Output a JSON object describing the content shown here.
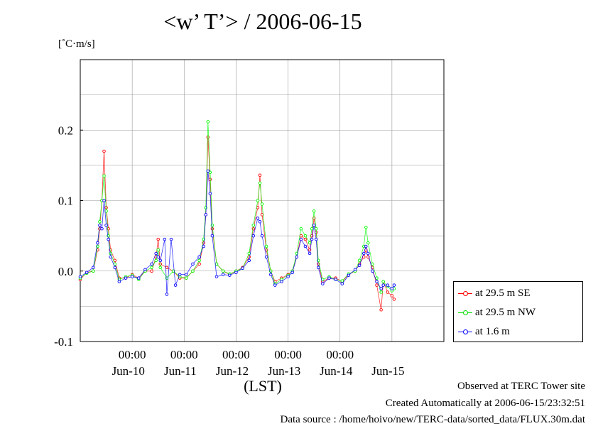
{
  "chart_data": {
    "type": "line",
    "title": "<w’ T’> / 2006-06-15",
    "units": "[˚C·m/s]",
    "xlabel": "(LST)",
    "x_start": "2006-06-09 00:00",
    "x_end": "2006-06-16 00:00",
    "x_time_ticks": [
      "00:00",
      "00:00",
      "00:00",
      "00:00",
      "00:00"
    ],
    "x_day_labels": [
      "Jun-10",
      "Jun-11",
      "Jun-12",
      "Jun-13",
      "Jun-14",
      "Jun-15"
    ],
    "y_ticks": [
      "-0.1",
      "0.0",
      "0.1",
      "0.2"
    ],
    "ylim": [
      -0.1,
      0.3
    ],
    "grid": true,
    "legend_position": "right-bottom",
    "series": [
      {
        "name": "at 29.5 m SE",
        "color": "#ff0000",
        "points": [
          [
            "2006-06-09 00:00",
            -0.012
          ],
          [
            "2006-06-09 03:00",
            -0.002
          ],
          [
            "2006-06-09 06:00",
            0.0
          ],
          [
            "2006-06-09 08:00",
            0.03
          ],
          [
            "2006-06-09 09:00",
            0.06
          ],
          [
            "2006-06-09 10:00",
            0.1
          ],
          [
            "2006-06-09 11:00",
            0.17
          ],
          [
            "2006-06-09 12:00",
            0.09
          ],
          [
            "2006-06-09 13:00",
            0.06
          ],
          [
            "2006-06-09 14:00",
            0.03
          ],
          [
            "2006-06-09 16:00",
            0.015
          ],
          [
            "2006-06-09 18:00",
            -0.01
          ],
          [
            "2006-06-09 21:00",
            -0.01
          ],
          [
            "2006-06-10 00:00",
            -0.005
          ],
          [
            "2006-06-10 03:00",
            -0.01
          ],
          [
            "2006-06-10 06:00",
            0.0
          ],
          [
            "2006-06-10 09:00",
            0.0
          ],
          [
            "2006-06-10 11:00",
            0.02
          ],
          [
            "2006-06-10 12:00",
            0.045
          ],
          [
            "2006-06-10 13:00",
            0.01
          ],
          [
            "2006-06-10 16:00",
            0.005
          ],
          [
            "2006-06-10 19:00",
            0.0
          ],
          [
            "2006-06-10 22:00",
            -0.01
          ],
          [
            "2006-06-11 01:00",
            -0.01
          ],
          [
            "2006-06-11 04:00",
            0.0
          ],
          [
            "2006-06-11 07:00",
            0.01
          ],
          [
            "2006-06-11 09:00",
            0.04
          ],
          [
            "2006-06-11 10:00",
            0.08
          ],
          [
            "2006-06-11 11:00",
            0.19
          ],
          [
            "2006-06-11 12:00",
            0.13
          ],
          [
            "2006-06-11 13:00",
            0.06
          ],
          [
            "2006-06-11 15:00",
            0.01
          ],
          [
            "2006-06-11 18:00",
            0.0
          ],
          [
            "2006-06-11 21:00",
            -0.005
          ],
          [
            "2006-06-12 00:00",
            0.0
          ],
          [
            "2006-06-12 03:00",
            0.005
          ],
          [
            "2006-06-12 06:00",
            0.02
          ],
          [
            "2006-06-12 08:00",
            0.06
          ],
          [
            "2006-06-12 10:00",
            0.09
          ],
          [
            "2006-06-12 11:00",
            0.136
          ],
          [
            "2006-06-12 12:00",
            0.08
          ],
          [
            "2006-06-12 14:00",
            0.03
          ],
          [
            "2006-06-12 16:00",
            0.0
          ],
          [
            "2006-06-12 18:00",
            -0.015
          ],
          [
            "2006-06-12 21:00",
            -0.01
          ],
          [
            "2006-06-13 00:00",
            -0.005
          ],
          [
            "2006-06-13 02:00",
            0.0
          ],
          [
            "2006-06-13 04:00",
            0.02
          ],
          [
            "2006-06-13 06:00",
            0.05
          ],
          [
            "2006-06-13 08:00",
            0.045
          ],
          [
            "2006-06-13 10:00",
            0.03
          ],
          [
            "2006-06-13 11:00",
            0.05
          ],
          [
            "2006-06-13 12:00",
            0.075
          ],
          [
            "2006-06-13 13:00",
            0.055
          ],
          [
            "2006-06-13 14:00",
            0.01
          ],
          [
            "2006-06-13 16:00",
            -0.015
          ],
          [
            "2006-06-13 19:00",
            -0.01
          ],
          [
            "2006-06-13 22:00",
            -0.01
          ],
          [
            "2006-06-14 01:00",
            -0.015
          ],
          [
            "2006-06-14 04:00",
            -0.005
          ],
          [
            "2006-06-14 07:00",
            0.0
          ],
          [
            "2006-06-14 09:00",
            0.01
          ],
          [
            "2006-06-14 11:00",
            0.02
          ],
          [
            "2006-06-14 12:00",
            0.03
          ],
          [
            "2006-06-14 13:00",
            0.02
          ],
          [
            "2006-06-14 15:00",
            0.005
          ],
          [
            "2006-06-14 17:00",
            -0.02
          ],
          [
            "2006-06-14 19:00",
            -0.055
          ],
          [
            "2006-06-14 20:00",
            -0.015
          ],
          [
            "2006-06-14 22:00",
            -0.03
          ],
          [
            "2006-06-15 00:00",
            -0.035
          ],
          [
            "2006-06-15 01:00",
            -0.04
          ]
        ]
      },
      {
        "name": "at 29.5 m NW",
        "color": "#00ff00",
        "points": [
          [
            "2006-06-09 00:00",
            -0.01
          ],
          [
            "2006-06-09 03:00",
            -0.003
          ],
          [
            "2006-06-09 06:00",
            0.0
          ],
          [
            "2006-06-09 08:00",
            0.035
          ],
          [
            "2006-06-09 09:00",
            0.07
          ],
          [
            "2006-06-09 10:00",
            0.1
          ],
          [
            "2006-06-09 11:00",
            0.135
          ],
          [
            "2006-06-09 12:00",
            0.085
          ],
          [
            "2006-06-09 13:00",
            0.05
          ],
          [
            "2006-06-09 14:00",
            0.025
          ],
          [
            "2006-06-09 16:00",
            0.01
          ],
          [
            "2006-06-09 18:00",
            -0.012
          ],
          [
            "2006-06-09 21:00",
            -0.008
          ],
          [
            "2006-06-10 00:00",
            -0.006
          ],
          [
            "2006-06-10 03:00",
            -0.012
          ],
          [
            "2006-06-10 06:00",
            0.0
          ],
          [
            "2006-06-10 09:00",
            0.005
          ],
          [
            "2006-06-10 11:00",
            0.015
          ],
          [
            "2006-06-10 12:00",
            0.03
          ],
          [
            "2006-06-10 13:00",
            0.005
          ],
          [
            "2006-06-10 16:00",
            -0.01
          ],
          [
            "2006-06-10 19:00",
            0.0
          ],
          [
            "2006-06-10 22:00",
            -0.008
          ],
          [
            "2006-06-11 01:00",
            -0.01
          ],
          [
            "2006-06-11 04:00",
            0.0
          ],
          [
            "2006-06-11 07:00",
            0.015
          ],
          [
            "2006-06-11 09:00",
            0.045
          ],
          [
            "2006-06-11 10:00",
            0.09
          ],
          [
            "2006-06-11 11:00",
            0.212
          ],
          [
            "2006-06-11 12:00",
            0.14
          ],
          [
            "2006-06-11 13:00",
            0.065
          ],
          [
            "2006-06-11 15:00",
            0.01
          ],
          [
            "2006-06-11 18:00",
            0.0
          ],
          [
            "2006-06-11 21:00",
            -0.004
          ],
          [
            "2006-06-12 00:00",
            0.0
          ],
          [
            "2006-06-12 03:00",
            0.004
          ],
          [
            "2006-06-12 06:00",
            0.025
          ],
          [
            "2006-06-12 08:00",
            0.065
          ],
          [
            "2006-06-12 10:00",
            0.1
          ],
          [
            "2006-06-12 11:00",
            0.125
          ],
          [
            "2006-06-12 12:00",
            0.095
          ],
          [
            "2006-06-12 14:00",
            0.035
          ],
          [
            "2006-06-12 16:00",
            0.0
          ],
          [
            "2006-06-12 18:00",
            -0.018
          ],
          [
            "2006-06-12 21:00",
            -0.012
          ],
          [
            "2006-06-13 00:00",
            -0.006
          ],
          [
            "2006-06-13 02:00",
            0.0
          ],
          [
            "2006-06-13 04:00",
            0.025
          ],
          [
            "2006-06-13 06:00",
            0.06
          ],
          [
            "2006-06-13 08:00",
            0.05
          ],
          [
            "2006-06-13 10:00",
            0.04
          ],
          [
            "2006-06-13 11:00",
            0.06
          ],
          [
            "2006-06-13 12:00",
            0.085
          ],
          [
            "2006-06-13 13:00",
            0.06
          ],
          [
            "2006-06-13 14:00",
            0.015
          ],
          [
            "2006-06-13 16:00",
            -0.012
          ],
          [
            "2006-06-13 19:00",
            -0.008
          ],
          [
            "2006-06-13 22:00",
            -0.012
          ],
          [
            "2006-06-14 01:00",
            -0.014
          ],
          [
            "2006-06-14 04:00",
            -0.004
          ],
          [
            "2006-06-14 07:00",
            0.0
          ],
          [
            "2006-06-14 09:00",
            0.015
          ],
          [
            "2006-06-14 11:00",
            0.035
          ],
          [
            "2006-06-14 12:00",
            0.062
          ],
          [
            "2006-06-14 13:00",
            0.04
          ],
          [
            "2006-06-14 15:00",
            0.01
          ],
          [
            "2006-06-14 17:00",
            -0.01
          ],
          [
            "2006-06-14 19:00",
            -0.03
          ],
          [
            "2006-06-14 20:00",
            -0.015
          ],
          [
            "2006-06-14 22:00",
            -0.022
          ],
          [
            "2006-06-15 00:00",
            -0.028
          ],
          [
            "2006-06-15 01:00",
            -0.025
          ]
        ]
      },
      {
        "name": "at 1.6 m",
        "color": "#0000ff",
        "points": [
          [
            "2006-06-09 00:00",
            -0.008
          ],
          [
            "2006-06-09 03:00",
            -0.002
          ],
          [
            "2006-06-09 06:00",
            0.005
          ],
          [
            "2006-06-09 08:00",
            0.04
          ],
          [
            "2006-06-09 09:00",
            0.065
          ],
          [
            "2006-06-09 10:00",
            0.06
          ],
          [
            "2006-06-09 11:00",
            0.1
          ],
          [
            "2006-06-09 12:00",
            0.065
          ],
          [
            "2006-06-09 13:00",
            0.045
          ],
          [
            "2006-06-09 14:00",
            0.02
          ],
          [
            "2006-06-09 16:00",
            0.005
          ],
          [
            "2006-06-09 18:00",
            -0.015
          ],
          [
            "2006-06-09 21:00",
            -0.01
          ],
          [
            "2006-06-10 00:00",
            -0.008
          ],
          [
            "2006-06-10 03:00",
            -0.01
          ],
          [
            "2006-06-10 06:00",
            0.002
          ],
          [
            "2006-06-10 09:00",
            0.01
          ],
          [
            "2006-06-10 11:00",
            0.025
          ],
          [
            "2006-06-10 12:00",
            0.02
          ],
          [
            "2006-06-10 13:00",
            0.015
          ],
          [
            "2006-06-10 15:00",
            0.045
          ],
          [
            "2006-06-10 16:00",
            -0.033
          ],
          [
            "2006-06-10 18:00",
            0.045
          ],
          [
            "2006-06-10 20:00",
            -0.02
          ],
          [
            "2006-06-10 22:00",
            -0.005
          ],
          [
            "2006-06-11 01:00",
            -0.005
          ],
          [
            "2006-06-11 04:00",
            0.01
          ],
          [
            "2006-06-11 07:00",
            0.02
          ],
          [
            "2006-06-11 09:00",
            0.035
          ],
          [
            "2006-06-11 10:00",
            0.08
          ],
          [
            "2006-06-11 11:00",
            0.142
          ],
          [
            "2006-06-11 12:00",
            0.11
          ],
          [
            "2006-06-11 13:00",
            0.05
          ],
          [
            "2006-06-11 15:00",
            -0.008
          ],
          [
            "2006-06-11 18:00",
            -0.005
          ],
          [
            "2006-06-11 21:00",
            -0.006
          ],
          [
            "2006-06-12 00:00",
            -0.002
          ],
          [
            "2006-06-12 03:00",
            0.004
          ],
          [
            "2006-06-12 06:00",
            0.015
          ],
          [
            "2006-06-12 08:00",
            0.05
          ],
          [
            "2006-06-12 10:00",
            0.075
          ],
          [
            "2006-06-12 11:00",
            0.07
          ],
          [
            "2006-06-12 12:00",
            0.05
          ],
          [
            "2006-06-12 14:00",
            0.02
          ],
          [
            "2006-06-12 16:00",
            -0.005
          ],
          [
            "2006-06-12 18:00",
            -0.02
          ],
          [
            "2006-06-12 21:00",
            -0.015
          ],
          [
            "2006-06-13 00:00",
            -0.008
          ],
          [
            "2006-06-13 02:00",
            -0.002
          ],
          [
            "2006-06-13 04:00",
            0.02
          ],
          [
            "2006-06-13 06:00",
            0.045
          ],
          [
            "2006-06-13 08:00",
            0.035
          ],
          [
            "2006-06-13 10:00",
            0.025
          ],
          [
            "2006-06-13 11:00",
            0.045
          ],
          [
            "2006-06-13 12:00",
            0.065
          ],
          [
            "2006-06-13 13:00",
            0.045
          ],
          [
            "2006-06-13 14:00",
            0.005
          ],
          [
            "2006-06-13 16:00",
            -0.018
          ],
          [
            "2006-06-13 19:00",
            -0.01
          ],
          [
            "2006-06-13 22:00",
            -0.012
          ],
          [
            "2006-06-14 01:00",
            -0.018
          ],
          [
            "2006-06-14 04:00",
            -0.006
          ],
          [
            "2006-06-14 07:00",
            0.002
          ],
          [
            "2006-06-14 09:00",
            0.008
          ],
          [
            "2006-06-14 11:00",
            0.025
          ],
          [
            "2006-06-14 12:00",
            0.035
          ],
          [
            "2006-06-14 13:00",
            0.025
          ],
          [
            "2006-06-14 15:00",
            0.0
          ],
          [
            "2006-06-14 17:00",
            -0.015
          ],
          [
            "2006-06-14 19:00",
            -0.025
          ],
          [
            "2006-06-14 20:00",
            -0.02
          ],
          [
            "2006-06-14 22:00",
            -0.02
          ],
          [
            "2006-06-15 00:00",
            -0.025
          ],
          [
            "2006-06-15 01:00",
            -0.02
          ]
        ]
      }
    ]
  },
  "footer": {
    "line1": "Observed at TERC Tower site",
    "line2": "Created Automatically at 2006-06-15/23:32:51",
    "line3": "Data source : /home/hoivo/new/TERC-data/sorted_data/FLUX.30m.dat"
  }
}
